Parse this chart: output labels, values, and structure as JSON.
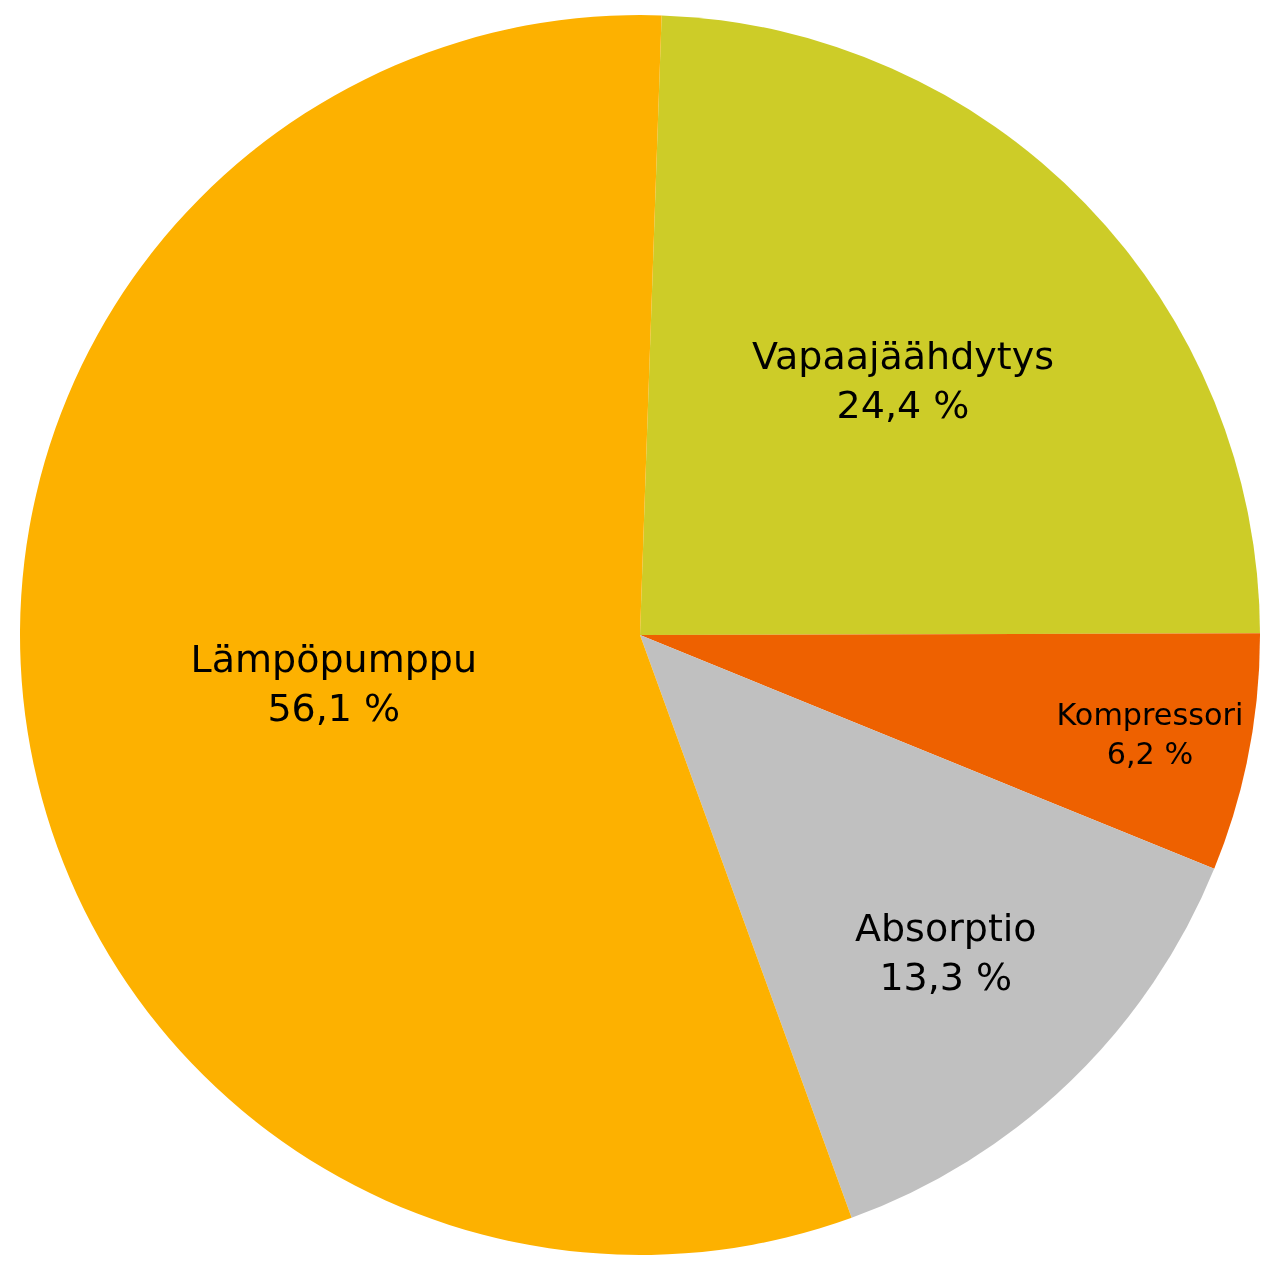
{
  "chart_data": {
    "type": "pie",
    "categories": [
      "Vapaajäähdytys",
      "Kompressori",
      "Absorptio",
      "Lämpöpumppu"
    ],
    "values": [
      24.4,
      6.2,
      13.3,
      56.1
    ],
    "colors": [
      "#cdcc28",
      "#ee6100",
      "#c0c0c0",
      "#fdb100"
    ],
    "value_labels": [
      "24,4 %",
      "6,2 %",
      "13,3 %",
      "56,1 %"
    ],
    "legend": false
  }
}
